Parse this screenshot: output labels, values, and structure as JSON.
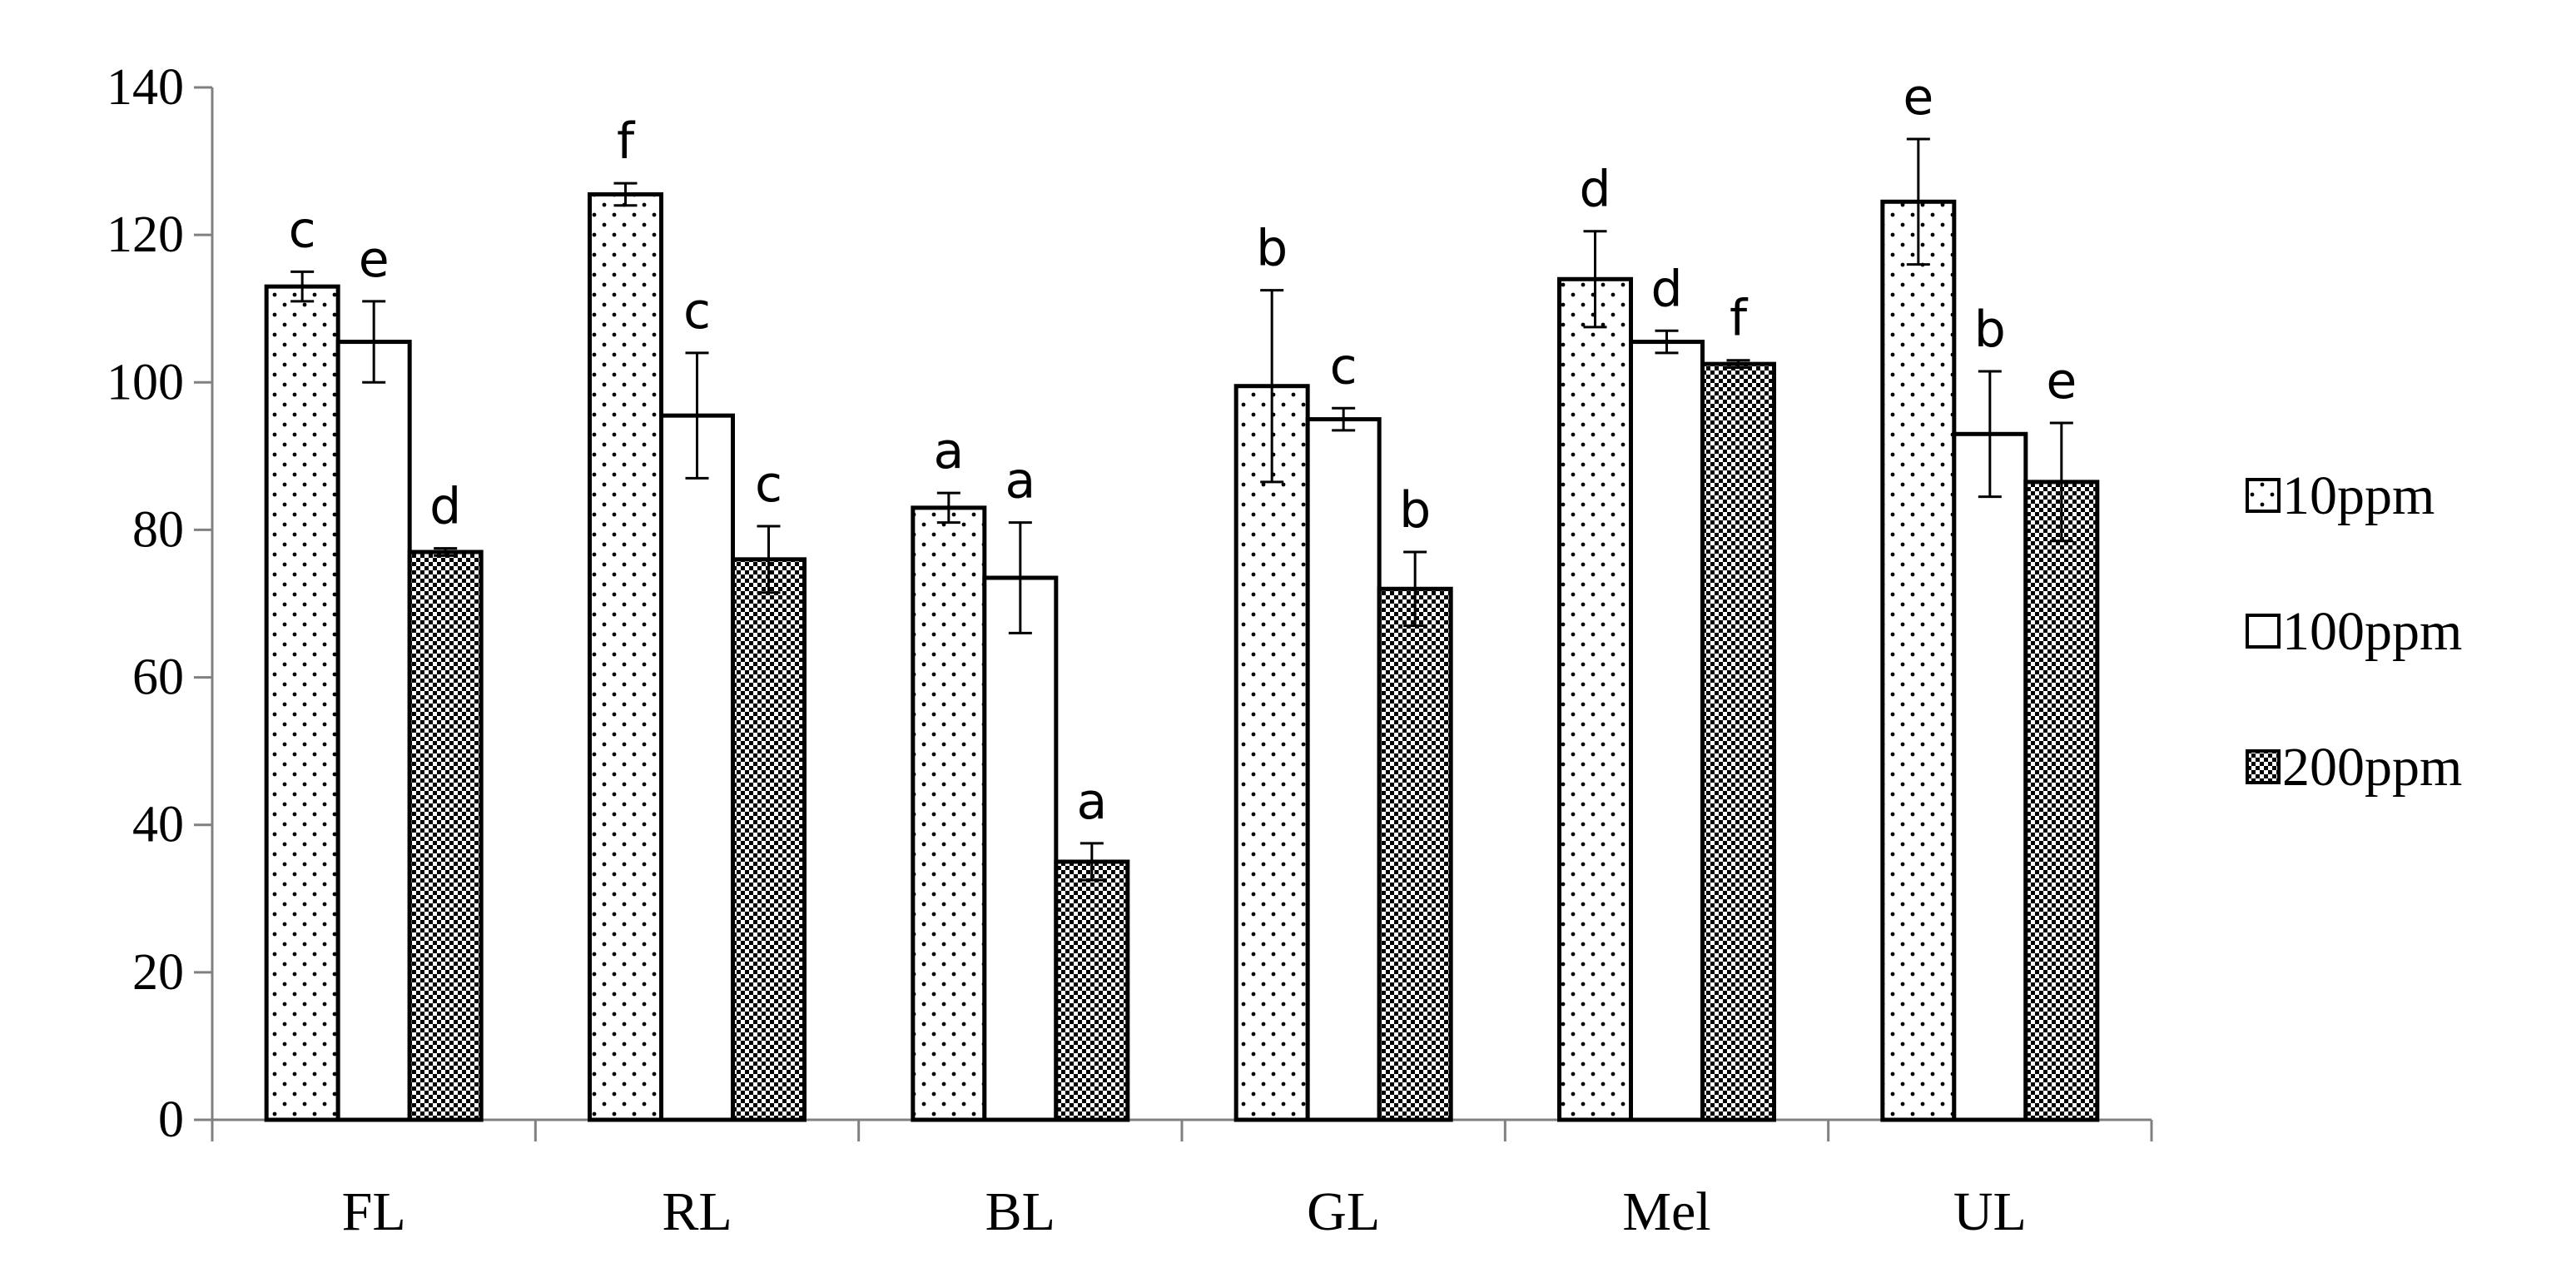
{
  "chart_data": {
    "type": "bar",
    "title": "",
    "xlabel": "",
    "ylabel": "",
    "ylim": [
      0,
      140
    ],
    "yticks": [
      0,
      20,
      40,
      60,
      80,
      100,
      120,
      140
    ],
    "grid": false,
    "legend_position": "right",
    "categories": [
      "FL",
      "RL",
      "BL",
      "GL",
      "Mel",
      "UL"
    ],
    "series": [
      {
        "name": "10ppm",
        "pattern": "dots",
        "values": [
          113,
          125.5,
          83,
          99.5,
          114,
          124.5
        ],
        "errors": [
          2,
          1.5,
          2,
          13,
          6.5,
          8.5
        ],
        "labels": [
          "c",
          "f",
          "a",
          "b",
          "d",
          "e"
        ]
      },
      {
        "name": "100ppm",
        "pattern": "plain",
        "values": [
          105.5,
          95.5,
          73.5,
          95,
          105.5,
          93
        ],
        "errors": [
          5.5,
          8.5,
          7.5,
          1.5,
          1.5,
          8.5
        ],
        "labels": [
          "e",
          "c",
          "a",
          "c",
          "d",
          "b"
        ]
      },
      {
        "name": "200ppm",
        "pattern": "checker",
        "values": [
          77,
          76,
          35,
          72,
          102.5,
          86.5
        ],
        "errors": [
          0.5,
          4.5,
          2.5,
          5,
          0.5,
          8
        ],
        "labels": [
          "d",
          "c",
          "a",
          "b",
          "f",
          "e"
        ]
      }
    ]
  }
}
